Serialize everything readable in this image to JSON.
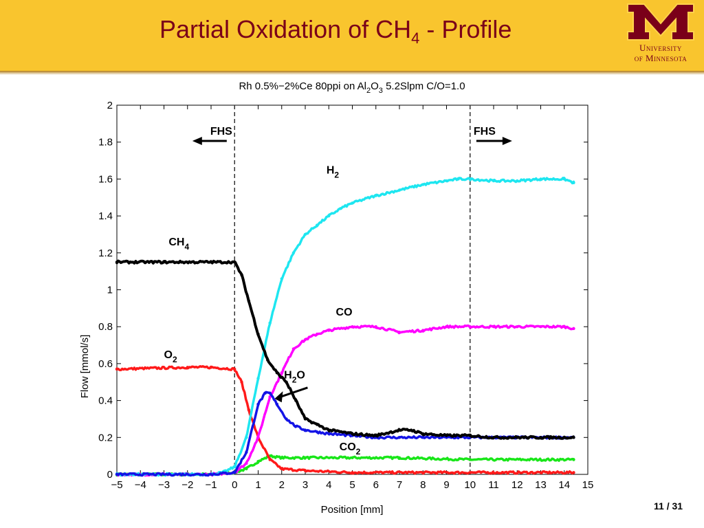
{
  "slide": {
    "title_main": "Partial Oxidation of CH",
    "title_sub": "4",
    "title_tail": " - Profile",
    "page_current": "11",
    "page_sep": " / ",
    "page_total": "31"
  },
  "logo": {
    "line1": "University",
    "line2": "of Minnesota",
    "color": "#7a0019"
  },
  "chart_data": {
    "type": "scatter",
    "title_parts": [
      "Rh 0.5%−2%Ce 80ppi on Al",
      "2",
      "O",
      "3",
      " 5.2Slpm C/O=1.0"
    ],
    "xlabel": "Position [mm]",
    "ylabel": "Flow [mmol/s]",
    "xlim": [
      -5,
      15
    ],
    "ylim": [
      0,
      2
    ],
    "xticks": [
      "−5",
      "−4",
      "−3",
      "−2",
      "−1",
      "0",
      "1",
      "2",
      "3",
      "4",
      "5",
      "6",
      "7",
      "8",
      "9",
      "10",
      "11",
      "12",
      "13",
      "14",
      "15"
    ],
    "yticks": [
      "0",
      "0.2",
      "0.4",
      "0.6",
      "0.8",
      "1",
      "1.2",
      "1.4",
      "1.6",
      "1.8",
      "2"
    ],
    "grid": false,
    "vlines": [
      0,
      10
    ],
    "series": [
      {
        "label_main": "H",
        "label_sub": "2",
        "color": "#1ee6f0",
        "x": [
          -5,
          -1,
          -0.5,
          0,
          0.5,
          1,
          1.5,
          2,
          2.5,
          3,
          3.5,
          4,
          4.5,
          5,
          6,
          7,
          8,
          9,
          9.5,
          10,
          11,
          12,
          13,
          14,
          14.4
        ],
        "y": [
          0,
          0,
          0.01,
          0.04,
          0.2,
          0.52,
          0.82,
          1.06,
          1.2,
          1.3,
          1.35,
          1.4,
          1.44,
          1.47,
          1.51,
          1.54,
          1.57,
          1.59,
          1.6,
          1.6,
          1.59,
          1.59,
          1.6,
          1.6,
          1.58
        ]
      },
      {
        "label_main": "CH",
        "label_sub": "4",
        "color": "#000000",
        "x": [
          -5,
          -3,
          -1,
          0,
          0.3,
          0.6,
          1,
          1.4,
          1.8,
          2.2,
          2.6,
          3,
          3.5,
          4,
          5,
          6,
          7,
          7.5,
          8,
          9,
          10,
          11,
          12,
          13,
          14,
          14.4
        ],
        "y": [
          1.15,
          1.15,
          1.15,
          1.15,
          1.08,
          0.94,
          0.76,
          0.62,
          0.55,
          0.5,
          0.4,
          0.3,
          0.27,
          0.24,
          0.22,
          0.21,
          0.24,
          0.24,
          0.22,
          0.21,
          0.21,
          0.2,
          0.2,
          0.2,
          0.2,
          0.2
        ]
      },
      {
        "label_main": "CO",
        "label_sub": "",
        "color": "#ff00ff",
        "x": [
          -5,
          -1,
          0,
          0.5,
          1,
          1.5,
          2,
          2.5,
          3,
          3.5,
          4,
          5,
          6,
          7,
          8,
          9,
          10,
          11,
          12,
          13,
          14,
          14.4
        ],
        "y": [
          0,
          0,
          0.01,
          0.06,
          0.2,
          0.42,
          0.55,
          0.68,
          0.73,
          0.76,
          0.78,
          0.8,
          0.8,
          0.77,
          0.78,
          0.8,
          0.8,
          0.8,
          0.8,
          0.8,
          0.8,
          0.79
        ]
      },
      {
        "label_main": "O",
        "label_sub": "2",
        "color": "#ff1a1a",
        "x": [
          -5,
          -2,
          -1,
          0,
          0.3,
          0.6,
          1,
          1.5,
          2,
          3,
          5,
          10,
          14.4
        ],
        "y": [
          0.57,
          0.58,
          0.58,
          0.57,
          0.5,
          0.35,
          0.2,
          0.08,
          0.03,
          0.02,
          0.01,
          0.01,
          0.01
        ]
      },
      {
        "label_main": "H",
        "label_sub": "2",
        "label_tail": "O",
        "color": "#1414e6",
        "x": [
          -5,
          -1,
          0,
          0.5,
          1,
          1.3,
          1.5,
          1.8,
          2.2,
          2.6,
          3,
          3.5,
          4,
          5,
          6,
          7,
          8,
          9,
          10,
          11,
          12,
          13,
          14,
          14.4
        ],
        "y": [
          0,
          0,
          0.01,
          0.12,
          0.38,
          0.44,
          0.44,
          0.38,
          0.3,
          0.26,
          0.24,
          0.23,
          0.22,
          0.21,
          0.2,
          0.2,
          0.2,
          0.2,
          0.2,
          0.2,
          0.2,
          0.2,
          0.2,
          0.2
        ]
      },
      {
        "label_main": "CO",
        "label_sub": "2",
        "color": "#19e619",
        "x": [
          -5,
          -1,
          0,
          0.5,
          1,
          1.5,
          2,
          3,
          5,
          7,
          10,
          14.4
        ],
        "y": [
          0,
          0,
          0.01,
          0.03,
          0.07,
          0.1,
          0.09,
          0.09,
          0.09,
          0.09,
          0.08,
          0.08
        ]
      }
    ],
    "annotations": [
      {
        "text": "FHS",
        "at_x": -0.1,
        "direction": "left"
      },
      {
        "text": "FHS",
        "at_x": 10.15,
        "direction": "right"
      }
    ]
  }
}
